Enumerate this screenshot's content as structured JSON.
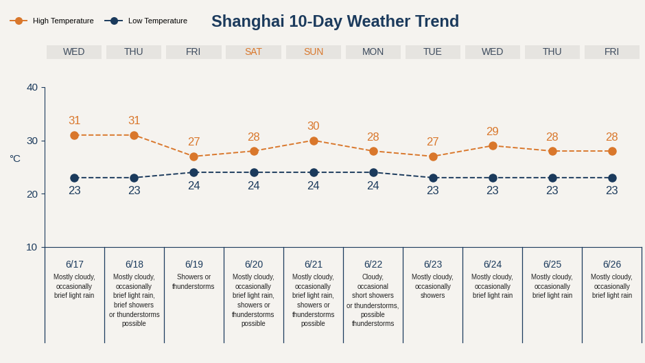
{
  "chart_data": {
    "type": "line",
    "title": "Shanghai 10-Day Weather Trend",
    "y_label": "°C",
    "categories": [
      "6/17",
      "6/18",
      "6/19",
      "6/20",
      "6/21",
      "6/22",
      "6/23",
      "6/24",
      "6/25",
      "6/26"
    ],
    "weekdays": [
      {
        "label": "WED",
        "color": "#3c4a5c"
      },
      {
        "label": "THU",
        "color": "#3c4a5c"
      },
      {
        "label": "FRI",
        "color": "#3c4a5c"
      },
      {
        "label": "SAT",
        "color": "#d9772b"
      },
      {
        "label": "SUN",
        "color": "#d9772b"
      },
      {
        "label": "MON",
        "color": "#3c4a5c"
      },
      {
        "label": "TUE",
        "color": "#3c4a5c"
      },
      {
        "label": "WED",
        "color": "#3c4a5c"
      },
      {
        "label": "THU",
        "color": "#3c4a5c"
      },
      {
        "label": "FRI",
        "color": "#3c4a5c"
      }
    ],
    "conditions": [
      "Mostly cloudy,\noccasionally\nbrief light rain",
      "Mostly cloudy,\noccasionally\nbrief light rain,\nbrief showers\nor thunderstorms\npossible",
      "Showers or\nthunderstorms",
      "Mostly cloudy,\noccasionally\nbrief light rain,\nshowers or\nthunderstorms\npossible",
      "Mostly cloudy,\noccasionally\nbrief light rain,\nshowers or\nthunderstorms\npossible",
      "Cloudy,\noccasional\nshort showers\nor thunderstorms,\npossible\nthunderstorms",
      "Mostly cloudy,\noccasionally\nshowers",
      "Mostly cloudy,\noccasionally\nbrief light rain",
      "Mostly cloudy,\noccasionally\nbrief light rain",
      "Mostly cloudy,\noccasionally\nbrief light rain"
    ],
    "series": [
      {
        "name": "High Temperature",
        "color": "#d9772b",
        "marker": "o",
        "line_style": "dashed",
        "values": [
          31,
          31,
          27,
          28,
          30,
          28,
          27,
          29,
          28,
          28
        ]
      },
      {
        "name": "Low Temperature",
        "color": "#1b3a5c",
        "marker": "o",
        "line_style": "dashed",
        "values": [
          23,
          23,
          24,
          24,
          24,
          24,
          23,
          23,
          23,
          23
        ]
      }
    ],
    "ylim": [
      10,
      40
    ],
    "yticks": [
      10,
      20,
      30,
      40
    ],
    "grid": false,
    "legend": "upper left",
    "data_labels": true
  }
}
